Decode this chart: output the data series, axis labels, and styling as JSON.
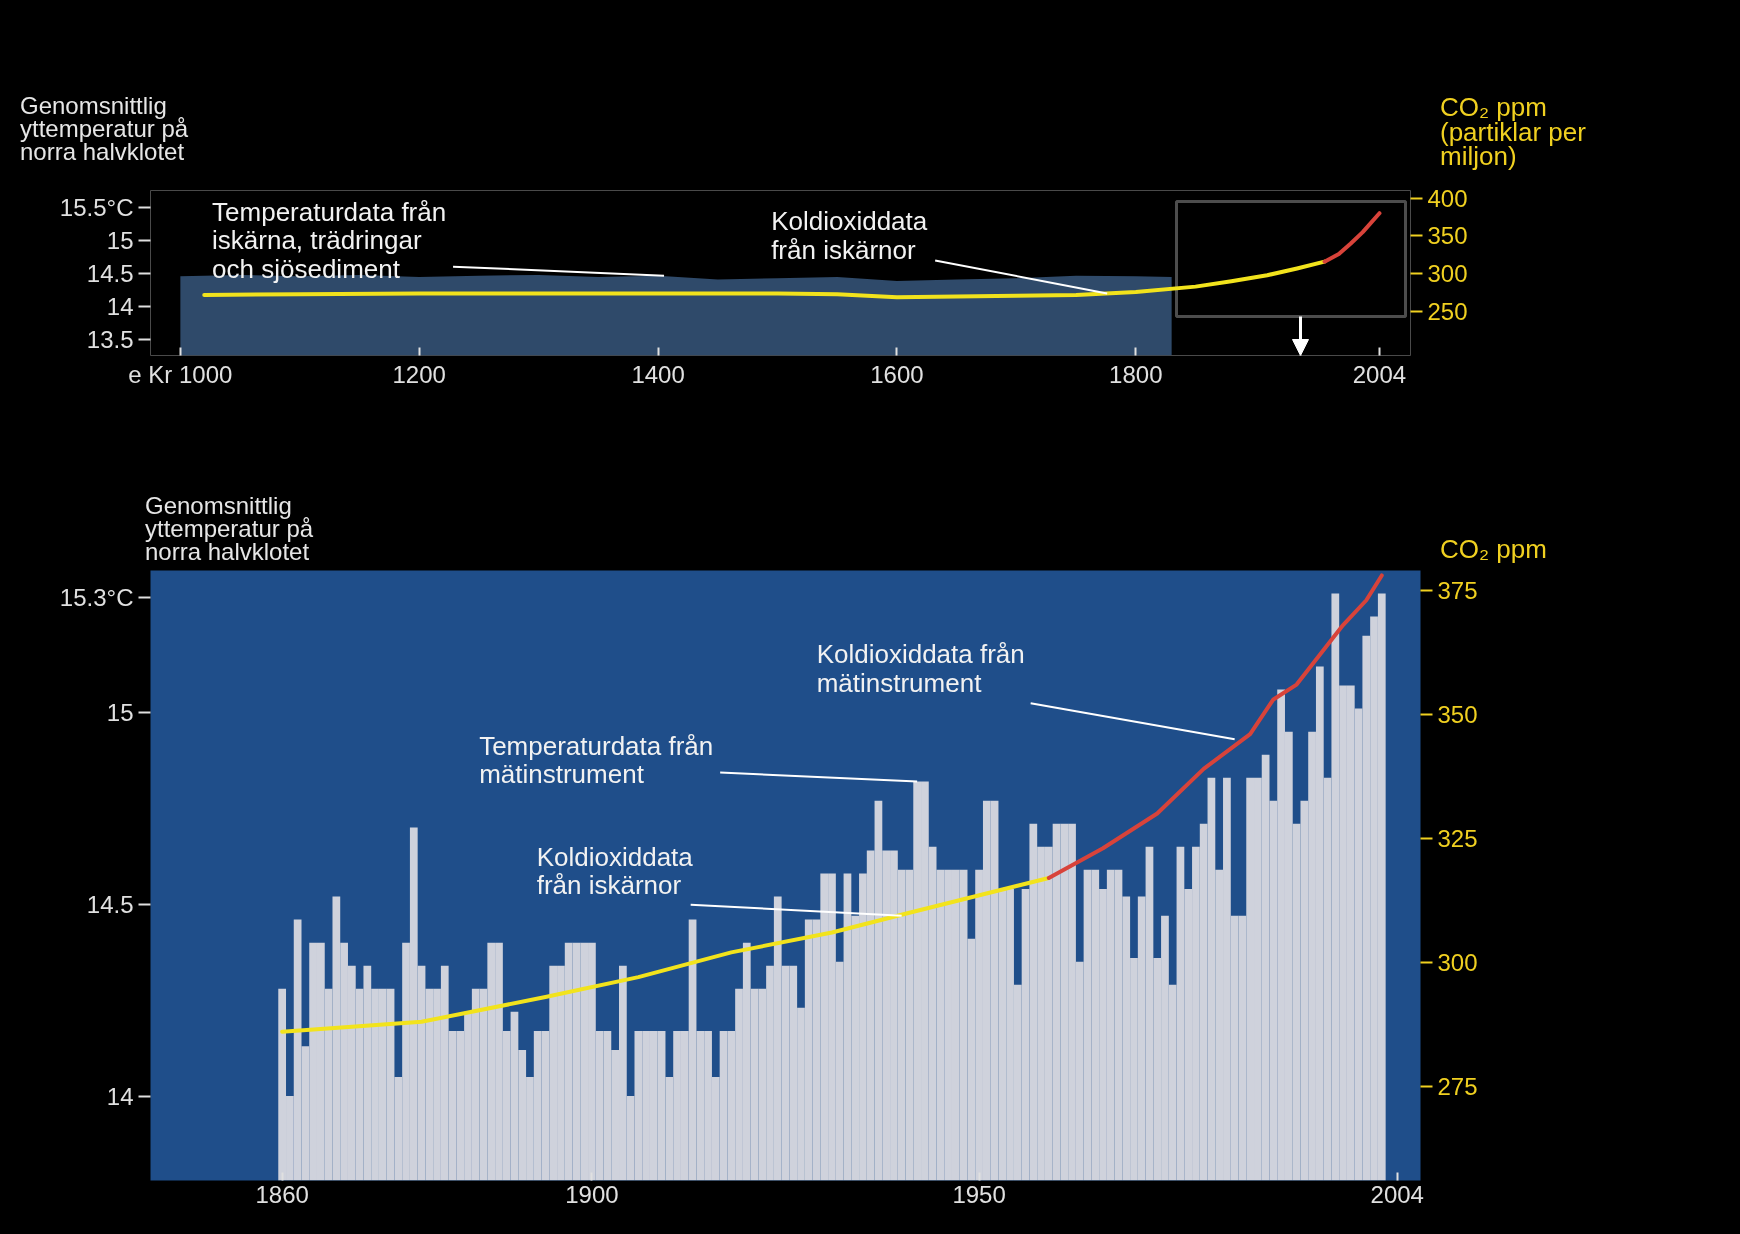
{
  "chart_data": [
    {
      "type": "area",
      "ylabel": "Genomsnittlig\nyttemperatur på\nnorra halvklotet",
      "y2label": "CO₂ ppm\n(partiklar per\nmiljon)",
      "xlim": [
        975,
        2030
      ],
      "xticks": [
        {
          "value": 1000,
          "label": "e Kr 1000"
        },
        1200,
        1400,
        1600,
        1800,
        2004
      ],
      "ylim": [
        13.25,
        15.75
      ],
      "yticks": [
        13.5,
        14,
        14.5,
        15,
        {
          "value": 15.5,
          "label": "15.5°C"
        }
      ],
      "y2lim": [
        192,
        410
      ],
      "y2ticks": [
        250,
        300,
        350,
        400
      ],
      "series": [
        {
          "color": "#2f4a6a",
          "x": [
            1000,
            1050,
            1100,
            1150,
            1200,
            1250,
            1300,
            1350,
            1400,
            1450,
            1500,
            1550,
            1600,
            1650,
            1700,
            1750,
            1800,
            1830
          ],
          "values": [
            14.45,
            14.47,
            14.45,
            14.47,
            14.44,
            14.46,
            14.47,
            14.44,
            14.46,
            14.4,
            14.42,
            14.44,
            14.38,
            14.4,
            14.42,
            14.46,
            14.45,
            14.44
          ]
        },
        {
          "type": "line",
          "axis": "y2",
          "color": "#f2e31c",
          "x": [
            1020,
            1100,
            1200,
            1300,
            1400,
            1500,
            1550,
            1600,
            1650,
            1700,
            1750,
            1800,
            1850,
            1880,
            1910,
            1935,
            1958
          ],
          "values": [
            272,
            273,
            274,
            274,
            274,
            274,
            273,
            269,
            270,
            271,
            272,
            276,
            283,
            290,
            298,
            307,
            316
          ]
        },
        {
          "type": "line",
          "axis": "y2",
          "color": "#d8433a",
          "x": [
            1958,
            1970,
            1980,
            1990,
            2004
          ],
          "values": [
            316,
            326,
            340,
            355,
            380
          ]
        }
      ],
      "annotations": [
        {
          "text": "Temperaturdata från\niskärna, trädringar\noch sjösediment",
          "x": 1405,
          "y": 14.46
        },
        {
          "text": "Koldioxiddata\nfrån iskärnor",
          "x": 1776,
          "y": 14.19
        }
      ]
    },
    {
      "type": "bar",
      "ylabel": "Genomsnittlig\nyttemperatur på\nnorra halvklotet",
      "y2label": "CO₂ ppm",
      "xlim": [
        1843,
        2007
      ],
      "xticks": [
        1860,
        1900,
        1950,
        2004
      ],
      "ylim": [
        13.78,
        15.37
      ],
      "yticks": [
        14,
        14.5,
        15,
        {
          "value": 15.3,
          "label": "15.3°C"
        }
      ],
      "y2lim": [
        256,
        379
      ],
      "y2ticks": [
        275,
        300,
        325,
        350,
        375
      ],
      "series": [
        {
          "color": "#cfd2dc",
          "x": [
            1860,
            1861,
            1862,
            1863,
            1864,
            1865,
            1866,
            1867,
            1868,
            1869,
            1870,
            1871,
            1872,
            1873,
            1874,
            1875,
            1876,
            1877,
            1878,
            1879,
            1880,
            1881,
            1882,
            1883,
            1884,
            1885,
            1886,
            1887,
            1888,
            1889,
            1890,
            1891,
            1892,
            1893,
            1894,
            1895,
            1896,
            1897,
            1898,
            1899,
            1900,
            1901,
            1902,
            1903,
            1904,
            1905,
            1906,
            1907,
            1908,
            1909,
            1910,
            1911,
            1912,
            1913,
            1914,
            1915,
            1916,
            1917,
            1918,
            1919,
            1920,
            1921,
            1922,
            1923,
            1924,
            1925,
            1926,
            1927,
            1928,
            1929,
            1930,
            1931,
            1932,
            1933,
            1934,
            1935,
            1936,
            1937,
            1938,
            1939,
            1940,
            1941,
            1942,
            1943,
            1944,
            1945,
            1946,
            1947,
            1948,
            1949,
            1950,
            1951,
            1952,
            1953,
            1954,
            1955,
            1956,
            1957,
            1958,
            1959,
            1960,
            1961,
            1962,
            1963,
            1964,
            1965,
            1966,
            1967,
            1968,
            1969,
            1970,
            1971,
            1972,
            1973,
            1974,
            1975,
            1976,
            1977,
            1978,
            1979,
            1980,
            1981,
            1982,
            1983,
            1984,
            1985,
            1986,
            1987,
            1988,
            1989,
            1990,
            1991,
            1992,
            1993,
            1994,
            1995,
            1996,
            1997,
            1998,
            1999,
            2000,
            2001,
            2002
          ],
          "values": [
            14.28,
            14.0,
            14.46,
            14.13,
            14.4,
            14.4,
            14.28,
            14.52,
            14.4,
            14.34,
            14.28,
            14.34,
            14.28,
            14.28,
            14.28,
            14.05,
            14.4,
            14.7,
            14.34,
            14.28,
            14.28,
            14.34,
            14.17,
            14.17,
            14.22,
            14.28,
            14.28,
            14.4,
            14.4,
            14.17,
            14.22,
            14.12,
            14.05,
            14.17,
            14.17,
            14.34,
            14.34,
            14.4,
            14.4,
            14.4,
            14.4,
            14.17,
            14.17,
            14.12,
            14.34,
            14.0,
            14.17,
            14.17,
            14.17,
            14.17,
            14.05,
            14.17,
            14.17,
            14.46,
            14.17,
            14.17,
            14.05,
            14.17,
            14.17,
            14.28,
            14.4,
            14.28,
            14.28,
            14.34,
            14.52,
            14.34,
            14.34,
            14.23,
            14.46,
            14.46,
            14.58,
            14.58,
            14.35,
            14.58,
            14.47,
            14.58,
            14.64,
            14.77,
            14.64,
            14.64,
            14.59,
            14.59,
            14.82,
            14.82,
            14.65,
            14.59,
            14.59,
            14.59,
            14.59,
            14.41,
            14.59,
            14.77,
            14.77,
            14.54,
            14.54,
            14.29,
            14.54,
            14.71,
            14.65,
            14.65,
            14.71,
            14.71,
            14.71,
            14.35,
            14.59,
            14.59,
            14.54,
            14.59,
            14.59,
            14.52,
            14.36,
            14.52,
            14.65,
            14.36,
            14.47,
            14.29,
            14.65,
            14.54,
            14.65,
            14.71,
            14.83,
            14.59,
            14.83,
            14.47,
            14.47,
            14.83,
            14.83,
            14.89,
            14.77,
            15.06,
            14.95,
            14.71,
            14.77,
            14.95,
            15.12,
            14.83,
            15.31,
            15.07,
            15.07,
            15.01,
            15.2,
            15.25,
            15.31
          ]
        },
        {
          "type": "line",
          "axis": "y2",
          "color": "#f2e31c",
          "x": [
            1860,
            1878,
            1894,
            1906,
            1918,
            1931,
            1941,
            1959
          ],
          "values": [
            286,
            288,
            293,
            297,
            302,
            306,
            310,
            317
          ]
        },
        {
          "type": "line",
          "axis": "y2",
          "color": "#d8433a",
          "x": [
            1959,
            1966,
            1973,
            1979,
            1985,
            1988,
            1991,
            1994,
            1997,
            2000,
            2002
          ],
          "values": [
            317,
            323,
            330,
            339,
            346,
            353,
            356,
            362,
            368,
            373,
            378
          ]
        }
      ],
      "annotations": [
        {
          "text": "Koldioxiddata från\nmätinstrument",
          "x": 1983,
          "y": 14.93
        },
        {
          "text": "Temperaturdata från\nmätinstrument",
          "x": 1942,
          "y": 14.82
        },
        {
          "text": "Koldioxiddata\nfrån iskärnor",
          "x": 1940,
          "y": 14.47
        }
      ]
    }
  ]
}
